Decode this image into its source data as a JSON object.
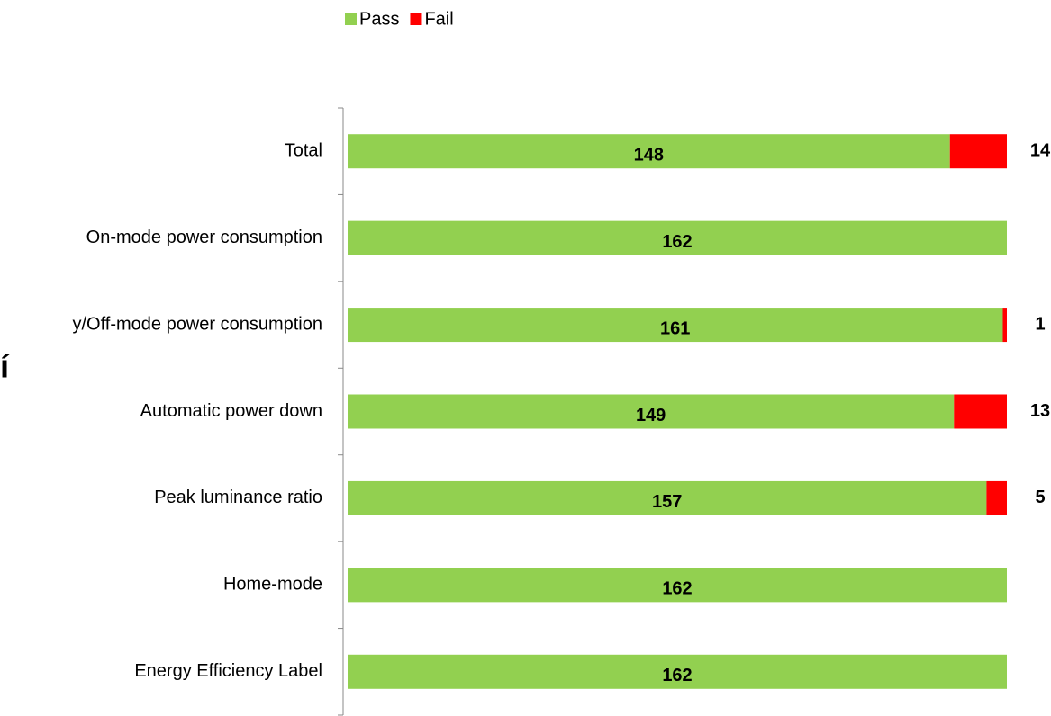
{
  "chart_data": {
    "type": "stacked-bar-horizontal",
    "categories": [
      "Total",
      "On-mode power consumption",
      "y/Off-mode power consumption",
      "Automatic power down",
      "Peak luminance ratio",
      "Home-mode",
      "Energy Efficiency Label"
    ],
    "series": [
      {
        "name": "Pass",
        "color": "#92d050",
        "values": [
          148,
          162,
          161,
          149,
          157,
          162,
          162
        ]
      },
      {
        "name": "Fail",
        "color": "#ff0000",
        "values": [
          14,
          0,
          1,
          13,
          5,
          0,
          0
        ]
      }
    ],
    "xlim": [
      0,
      162
    ],
    "legend": "top",
    "annotation": "í"
  }
}
